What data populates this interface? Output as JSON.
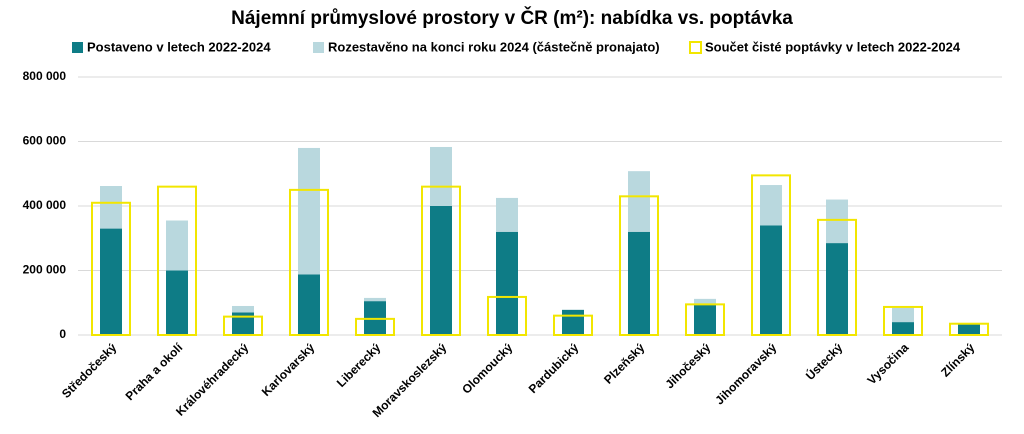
{
  "chart_data": {
    "type": "bar",
    "title": "Nájemní průmyslové prostory v ČR (m²): nabídka vs. poptávka",
    "categories": [
      "Středočeský",
      "Praha a okolí",
      "Královéhradecký",
      "Karlovarský",
      "Liberecký",
      "Moravskoslezský",
      "Olomoucký",
      "Pardubický",
      "Plzeňský",
      "Jihočeský",
      "Jihomoravský",
      "Ústecký",
      "Vysočina",
      "Zlínský"
    ],
    "series": [
      {
        "name": "Postaveno v letech 2022-2024",
        "color": "#0e7c86",
        "stack": true,
        "values": [
          330000,
          200000,
          70000,
          188000,
          105000,
          400000,
          320000,
          78000,
          320000,
          95000,
          340000,
          285000,
          40000,
          34000
        ]
      },
      {
        "name": "Rozestavěno na konci roku 2024 (částečně pronajato)",
        "color": "#b9d8de",
        "stack": true,
        "values": [
          132000,
          155000,
          20000,
          392000,
          10000,
          183000,
          105000,
          0,
          188000,
          17000,
          125000,
          135000,
          44000,
          3000
        ]
      },
      {
        "name": "Součet čisté poptávky v letech 2022-2024",
        "color": "#f2e600",
        "outline": true,
        "values": [
          410000,
          460000,
          57000,
          450000,
          50000,
          460000,
          118000,
          60000,
          430000,
          95000,
          495000,
          357000,
          87000,
          35000
        ]
      }
    ],
    "ylim": [
      0,
      800000
    ],
    "yticks": [
      0,
      {
        "value": 200000,
        "label": "200 000"
      },
      {
        "value": 400000,
        "label": "400 000"
      },
      {
        "value": 600000,
        "label": "600 000"
      },
      {
        "value": 800000,
        "label": "800 000"
      }
    ],
    "grid": true
  }
}
